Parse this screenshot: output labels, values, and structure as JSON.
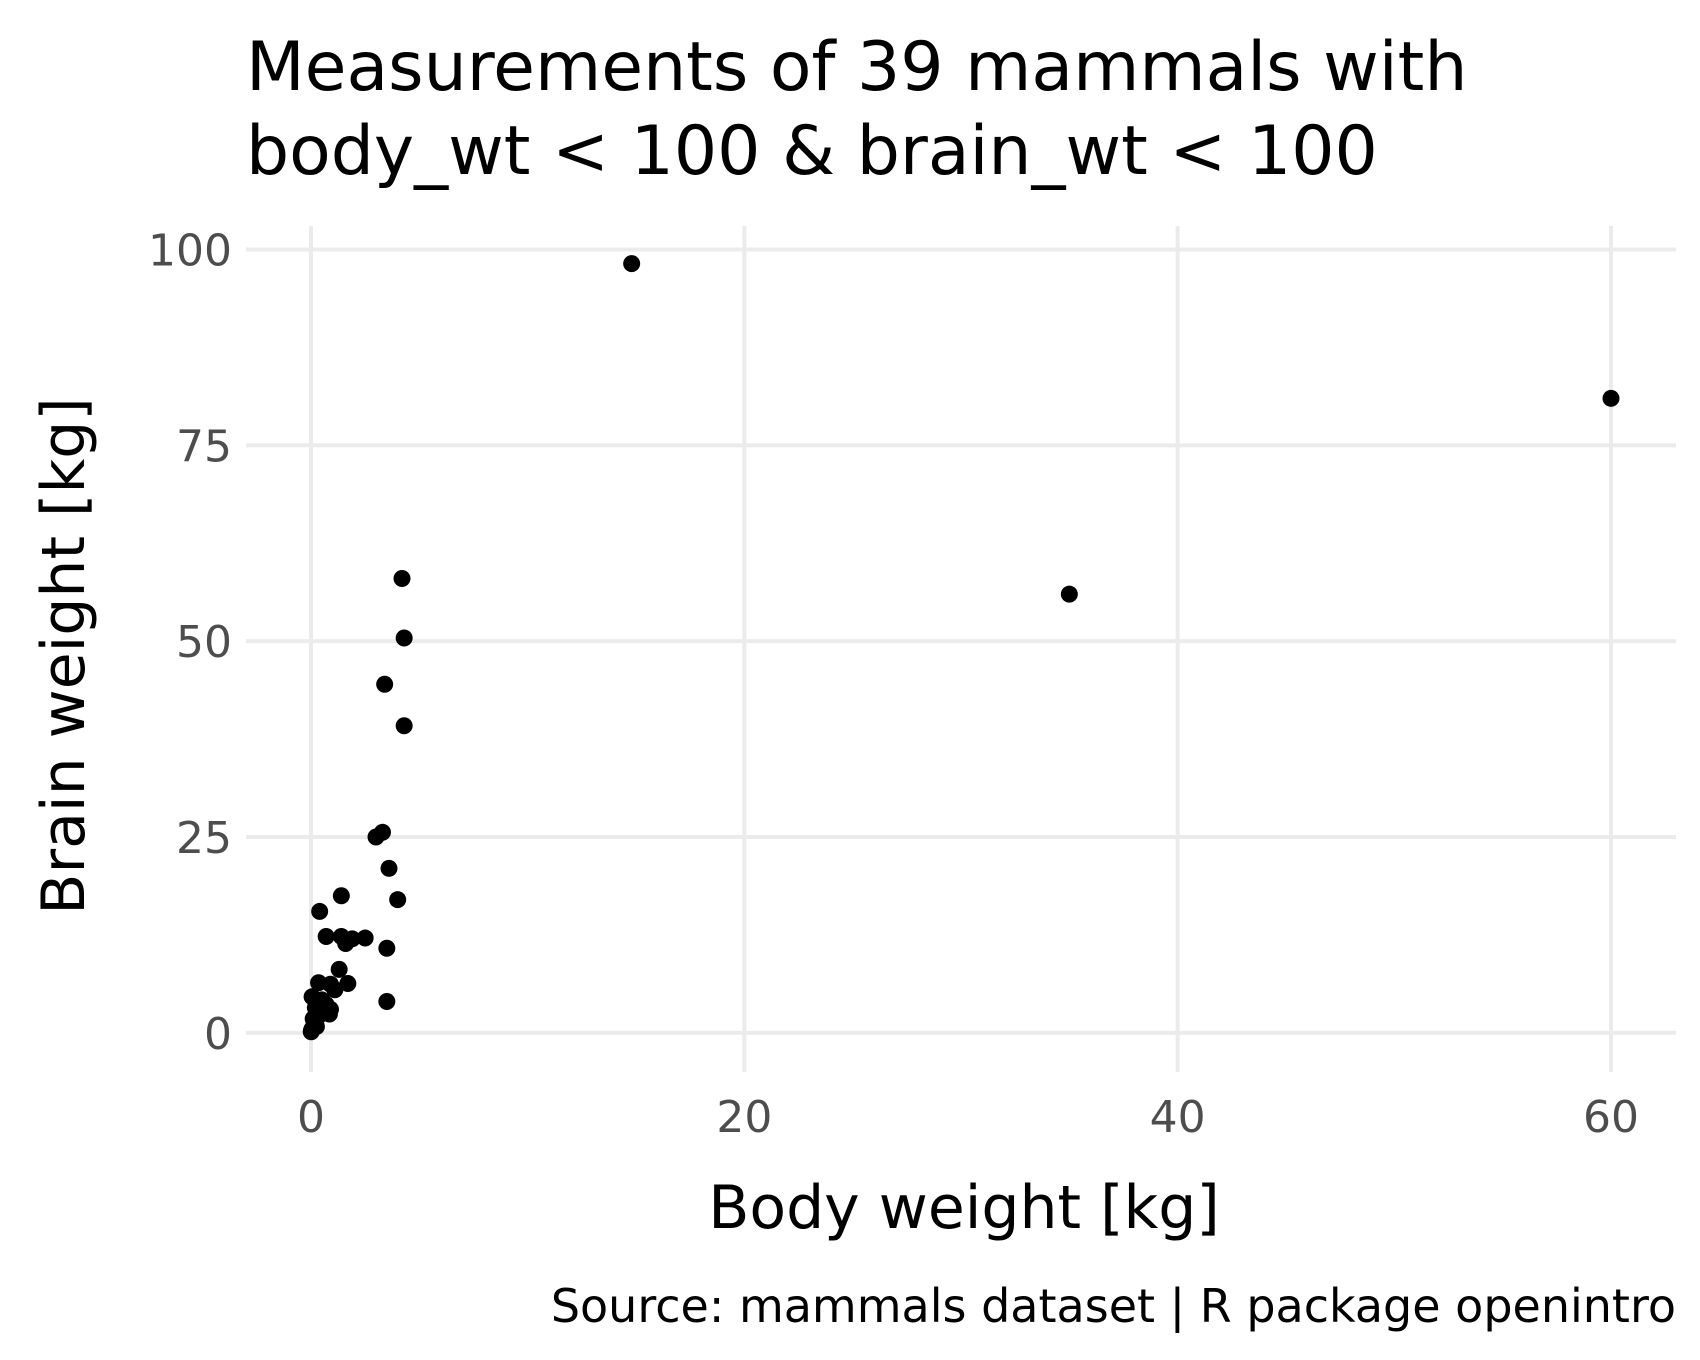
{
  "chart_data": {
    "type": "scatter",
    "title_lines": [
      "Measurements of 39 mammals with",
      "body_wt < 100 & brain_wt < 100"
    ],
    "xlabel": "Body weight [kg]",
    "ylabel": "Brain weight [kg]",
    "caption": "Source: mammals dataset | R package openintro",
    "xlim": [
      -3,
      63
    ],
    "ylim": [
      -5,
      103
    ],
    "x_ticks": [
      0,
      20,
      40,
      60
    ],
    "y_ticks": [
      0,
      25,
      50,
      75,
      100
    ],
    "grid": true,
    "point_color": "#000000",
    "points": [
      {
        "x": 14.8,
        "y": 98.2
      },
      {
        "x": 60.0,
        "y": 81.0
      },
      {
        "x": 35.0,
        "y": 56.0
      },
      {
        "x": 4.2,
        "y": 58.0
      },
      {
        "x": 4.3,
        "y": 50.4
      },
      {
        "x": 3.4,
        "y": 44.5
      },
      {
        "x": 4.3,
        "y": 39.2
      },
      {
        "x": 3.0,
        "y": 25.0
      },
      {
        "x": 3.3,
        "y": 25.6
      },
      {
        "x": 3.6,
        "y": 21.0
      },
      {
        "x": 4.0,
        "y": 17.0
      },
      {
        "x": 3.5,
        "y": 10.8
      },
      {
        "x": 3.5,
        "y": 4.0
      },
      {
        "x": 0.4,
        "y": 15.5
      },
      {
        "x": 1.4,
        "y": 17.5
      },
      {
        "x": 0.7,
        "y": 12.3
      },
      {
        "x": 1.4,
        "y": 12.3
      },
      {
        "x": 1.9,
        "y": 12.0
      },
      {
        "x": 1.6,
        "y": 11.4
      },
      {
        "x": 2.5,
        "y": 12.1
      },
      {
        "x": 1.3,
        "y": 8.1
      },
      {
        "x": 1.7,
        "y": 6.3
      },
      {
        "x": 0.35,
        "y": 6.4
      },
      {
        "x": 0.9,
        "y": 6.2
      },
      {
        "x": 1.1,
        "y": 5.5
      },
      {
        "x": 0.05,
        "y": 4.6
      },
      {
        "x": 0.5,
        "y": 4.2
      },
      {
        "x": 0.7,
        "y": 3.6
      },
      {
        "x": 0.9,
        "y": 3.0
      },
      {
        "x": 0.2,
        "y": 3.2
      },
      {
        "x": 0.85,
        "y": 2.4
      },
      {
        "x": 0.3,
        "y": 2.0
      },
      {
        "x": 0.1,
        "y": 1.8
      },
      {
        "x": 0.15,
        "y": 1.0
      },
      {
        "x": 0.05,
        "y": 0.5
      },
      {
        "x": 0.02,
        "y": 0.3
      },
      {
        "x": 0.01,
        "y": 0.14
      },
      {
        "x": 0.6,
        "y": 2.6
      },
      {
        "x": 0.25,
        "y": 0.8
      }
    ]
  }
}
